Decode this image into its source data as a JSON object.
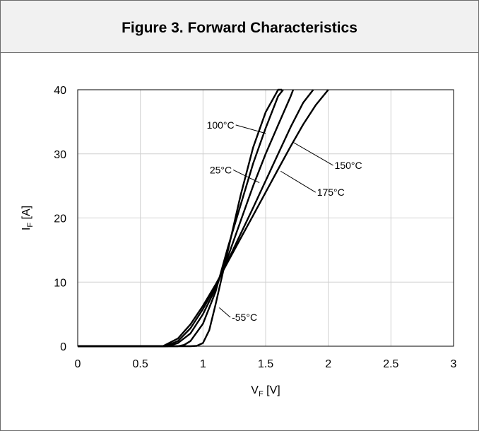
{
  "figure": {
    "title": "Figure 3. Forward Characteristics"
  },
  "chart_data": {
    "type": "line",
    "title": "",
    "xlabel_main": "V",
    "xlabel_sub": "F",
    "xlabel_unit": " [V]",
    "ylabel_main": "I",
    "ylabel_sub": "F",
    "ylabel_unit": " [A]",
    "xlim": [
      0,
      3
    ],
    "ylim": [
      0,
      40
    ],
    "xticks": [
      "0",
      "0.5",
      "1",
      "1.5",
      "2",
      "2.5",
      "3"
    ],
    "yticks": [
      "0",
      "10",
      "20",
      "30",
      "40"
    ],
    "grid": true,
    "series": [
      {
        "name": "-55°C",
        "x": [
          0,
          0.9,
          0.95,
          1.0,
          1.05,
          1.1,
          1.2,
          1.3,
          1.4,
          1.5,
          1.6,
          1.63
        ],
        "y": [
          0,
          0,
          0.05,
          0.5,
          2.5,
          6.5,
          15,
          23.5,
          31,
          36.5,
          40,
          40
        ]
      },
      {
        "name": "25°C",
        "x": [
          0,
          0.8,
          0.85,
          0.9,
          1.0,
          1.1,
          1.2,
          1.3,
          1.4,
          1.5,
          1.6,
          1.64
        ],
        "y": [
          0,
          0,
          0.2,
          0.8,
          3.5,
          8.5,
          15.5,
          22,
          28.5,
          34,
          39,
          40
        ]
      },
      {
        "name": "100°C",
        "x": [
          0,
          0.72,
          0.8,
          0.9,
          1.0,
          1.1,
          1.2,
          1.3,
          1.4,
          1.5,
          1.6,
          1.7,
          1.72
        ],
        "y": [
          0,
          0,
          0.5,
          2,
          5,
          9,
          14,
          19.5,
          25,
          30,
          34.5,
          39,
          40
        ]
      },
      {
        "name": "150°C",
        "x": [
          0,
          0.7,
          0.8,
          0.9,
          1.0,
          1.1,
          1.2,
          1.3,
          1.4,
          1.5,
          1.6,
          1.7,
          1.8,
          1.88
        ],
        "y": [
          0,
          0,
          0.8,
          2.8,
          5.8,
          9.4,
          13.4,
          17.5,
          21.6,
          25.8,
          30,
          34.2,
          38,
          40
        ]
      },
      {
        "name": "175°C",
        "x": [
          0,
          0.68,
          0.8,
          0.9,
          1.0,
          1.1,
          1.2,
          1.3,
          1.4,
          1.5,
          1.6,
          1.7,
          1.8,
          1.9,
          2.0
        ],
        "y": [
          0,
          0,
          1.2,
          3.4,
          6.3,
          9.6,
          13.2,
          16.8,
          20.4,
          24,
          27.6,
          31.2,
          34.6,
          37.6,
          40
        ]
      }
    ],
    "annotations": [
      {
        "text": "100°C",
        "series": "100°C",
        "label_x": 1.25,
        "label_y": 34.5,
        "point_x": 1.5,
        "point_y": 33.2
      },
      {
        "text": "150°C",
        "series": "150°C",
        "label_x": 2.05,
        "label_y": 28.2,
        "point_x": 1.72,
        "point_y": 31.8
      },
      {
        "text": "25°C",
        "series": "25°C",
        "label_x": 1.23,
        "label_y": 27.5,
        "point_x": 1.45,
        "point_y": 25.5
      },
      {
        "text": "175°C",
        "series": "175°C",
        "label_x": 1.91,
        "label_y": 24.0,
        "point_x": 1.62,
        "point_y": 27.3
      },
      {
        "text": "-55°C",
        "series": "-55°C",
        "label_x": 1.23,
        "label_y": 4.5,
        "point_x": 1.13,
        "point_y": 6.0
      }
    ]
  }
}
